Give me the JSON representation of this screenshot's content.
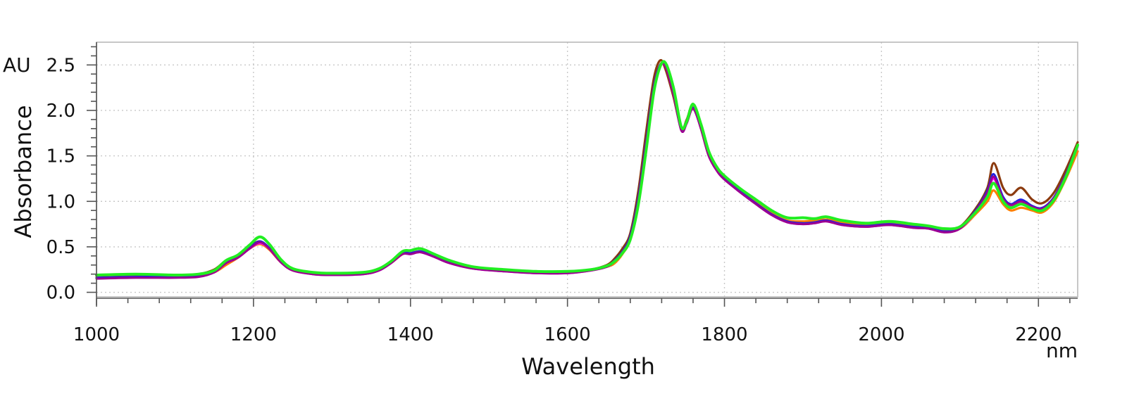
{
  "chart_data": {
    "type": "line",
    "title": "",
    "xlabel": "Wavelength",
    "ylabel": "Absorbance",
    "x_unit": "nm",
    "y_unit": "AU",
    "xlim": [
      1000,
      2250
    ],
    "ylim": [
      -0.05,
      2.75
    ],
    "x_ticks": [
      1000,
      1200,
      1400,
      1600,
      1800,
      2000,
      2200
    ],
    "x_tick_labels": [
      "1000",
      "1200",
      "1400",
      "1600",
      "1800",
      "2000",
      "2200"
    ],
    "y_ticks": [
      0.0,
      0.5,
      1.0,
      1.5,
      2.0,
      2.5
    ],
    "y_tick_labels": [
      "0.0",
      "0.5",
      "1.0",
      "1.5",
      "2.0",
      "2.5"
    ],
    "grid": true,
    "legend": "none",
    "x": [
      1000,
      1050,
      1100,
      1130,
      1150,
      1165,
      1180,
      1195,
      1208,
      1220,
      1235,
      1250,
      1275,
      1300,
      1340,
      1360,
      1375,
      1390,
      1400,
      1413,
      1430,
      1450,
      1480,
      1520,
      1560,
      1600,
      1630,
      1650,
      1660,
      1670,
      1680,
      1690,
      1700,
      1710,
      1718,
      1725,
      1735,
      1745,
      1752,
      1760,
      1770,
      1780,
      1790,
      1800,
      1820,
      1840,
      1860,
      1880,
      1900,
      1915,
      1930,
      1950,
      1980,
      2010,
      2040,
      2060,
      2080,
      2100,
      2120,
      2135,
      2143,
      2155,
      2165,
      2178,
      2192,
      2205,
      2220,
      2235,
      2250
    ],
    "series": [
      {
        "color": "#8B3A0E",
        "width": 3.2,
        "y": [
          0.18,
          0.19,
          0.18,
          0.2,
          0.25,
          0.35,
          0.4,
          0.5,
          0.56,
          0.48,
          0.33,
          0.25,
          0.21,
          0.2,
          0.21,
          0.25,
          0.33,
          0.43,
          0.43,
          0.45,
          0.4,
          0.33,
          0.27,
          0.24,
          0.22,
          0.22,
          0.25,
          0.3,
          0.37,
          0.48,
          0.65,
          1.1,
          1.75,
          2.35,
          2.55,
          2.45,
          2.15,
          1.8,
          1.9,
          2.06,
          1.8,
          1.5,
          1.35,
          1.25,
          1.1,
          0.98,
          0.86,
          0.78,
          0.76,
          0.78,
          0.8,
          0.76,
          0.74,
          0.76,
          0.73,
          0.72,
          0.68,
          0.72,
          0.92,
          1.15,
          1.42,
          1.15,
          1.07,
          1.15,
          1.02,
          0.98,
          1.1,
          1.35,
          1.65
        ]
      },
      {
        "color": "#FF7F00",
        "width": 3.2,
        "y": [
          0.16,
          0.17,
          0.17,
          0.18,
          0.22,
          0.3,
          0.38,
          0.48,
          0.53,
          0.47,
          0.33,
          0.24,
          0.21,
          0.2,
          0.21,
          0.25,
          0.32,
          0.42,
          0.43,
          0.45,
          0.4,
          0.33,
          0.27,
          0.24,
          0.22,
          0.22,
          0.25,
          0.28,
          0.32,
          0.42,
          0.58,
          0.98,
          1.6,
          2.25,
          2.5,
          2.5,
          2.2,
          1.8,
          1.88,
          2.04,
          1.82,
          1.52,
          1.36,
          1.26,
          1.12,
          1.0,
          0.87,
          0.79,
          0.78,
          0.79,
          0.8,
          0.77,
          0.74,
          0.76,
          0.73,
          0.72,
          0.68,
          0.7,
          0.86,
          1.0,
          1.12,
          0.97,
          0.9,
          0.93,
          0.9,
          0.88,
          1.0,
          1.25,
          1.55
        ]
      },
      {
        "color": "#FF00FF",
        "width": 3.0,
        "y": [
          0.16,
          0.17,
          0.17,
          0.18,
          0.22,
          0.32,
          0.38,
          0.48,
          0.54,
          0.48,
          0.33,
          0.24,
          0.2,
          0.19,
          0.2,
          0.24,
          0.32,
          0.42,
          0.42,
          0.44,
          0.39,
          0.32,
          0.26,
          0.23,
          0.21,
          0.21,
          0.24,
          0.28,
          0.34,
          0.44,
          0.6,
          1.0,
          1.62,
          2.25,
          2.48,
          2.48,
          2.18,
          1.78,
          1.86,
          2.02,
          1.8,
          1.5,
          1.34,
          1.24,
          1.1,
          0.97,
          0.85,
          0.77,
          0.75,
          0.76,
          0.78,
          0.74,
          0.72,
          0.74,
          0.71,
          0.7,
          0.66,
          0.7,
          0.88,
          1.08,
          1.25,
          1.02,
          0.95,
          0.99,
          0.93,
          0.91,
          1.03,
          1.28,
          1.6
        ]
      },
      {
        "color": "#2020E0",
        "width": 3.0,
        "y": [
          0.16,
          0.17,
          0.17,
          0.18,
          0.23,
          0.33,
          0.39,
          0.49,
          0.56,
          0.49,
          0.34,
          0.25,
          0.21,
          0.2,
          0.21,
          0.25,
          0.33,
          0.43,
          0.43,
          0.45,
          0.4,
          0.33,
          0.27,
          0.24,
          0.22,
          0.22,
          0.25,
          0.29,
          0.35,
          0.45,
          0.62,
          1.03,
          1.65,
          2.27,
          2.5,
          2.49,
          2.19,
          1.79,
          1.87,
          2.03,
          1.81,
          1.51,
          1.35,
          1.25,
          1.11,
          0.98,
          0.86,
          0.78,
          0.76,
          0.77,
          0.79,
          0.75,
          0.73,
          0.75,
          0.72,
          0.71,
          0.67,
          0.71,
          0.9,
          1.12,
          1.3,
          1.05,
          0.97,
          1.02,
          0.95,
          0.93,
          1.05,
          1.3,
          1.62
        ]
      },
      {
        "color": "#9A0090",
        "width": 3.0,
        "y": [
          0.15,
          0.16,
          0.16,
          0.17,
          0.22,
          0.32,
          0.38,
          0.48,
          0.55,
          0.48,
          0.33,
          0.24,
          0.2,
          0.19,
          0.2,
          0.24,
          0.32,
          0.42,
          0.42,
          0.44,
          0.39,
          0.32,
          0.26,
          0.23,
          0.21,
          0.21,
          0.24,
          0.28,
          0.34,
          0.44,
          0.6,
          1.0,
          1.62,
          2.25,
          2.49,
          2.48,
          2.18,
          1.78,
          1.86,
          2.02,
          1.8,
          1.5,
          1.34,
          1.24,
          1.1,
          0.97,
          0.85,
          0.77,
          0.75,
          0.76,
          0.78,
          0.74,
          0.72,
          0.74,
          0.71,
          0.7,
          0.66,
          0.7,
          0.89,
          1.1,
          1.27,
          1.03,
          0.96,
          1.0,
          0.94,
          0.92,
          1.04,
          1.29,
          1.61
        ]
      },
      {
        "color": "#22EE22",
        "width": 4.0,
        "y": [
          0.19,
          0.2,
          0.19,
          0.2,
          0.24,
          0.35,
          0.41,
          0.52,
          0.61,
          0.53,
          0.36,
          0.26,
          0.22,
          0.21,
          0.22,
          0.26,
          0.34,
          0.45,
          0.46,
          0.48,
          0.42,
          0.35,
          0.28,
          0.25,
          0.23,
          0.23,
          0.25,
          0.29,
          0.34,
          0.43,
          0.58,
          0.95,
          1.55,
          2.2,
          2.48,
          2.52,
          2.25,
          1.82,
          1.88,
          2.07,
          1.85,
          1.55,
          1.38,
          1.28,
          1.14,
          1.02,
          0.9,
          0.82,
          0.82,
          0.81,
          0.83,
          0.79,
          0.76,
          0.78,
          0.75,
          0.73,
          0.7,
          0.72,
          0.88,
          1.05,
          1.2,
          1.0,
          0.93,
          0.97,
          0.92,
          0.9,
          1.02,
          1.27,
          1.62
        ]
      }
    ]
  }
}
